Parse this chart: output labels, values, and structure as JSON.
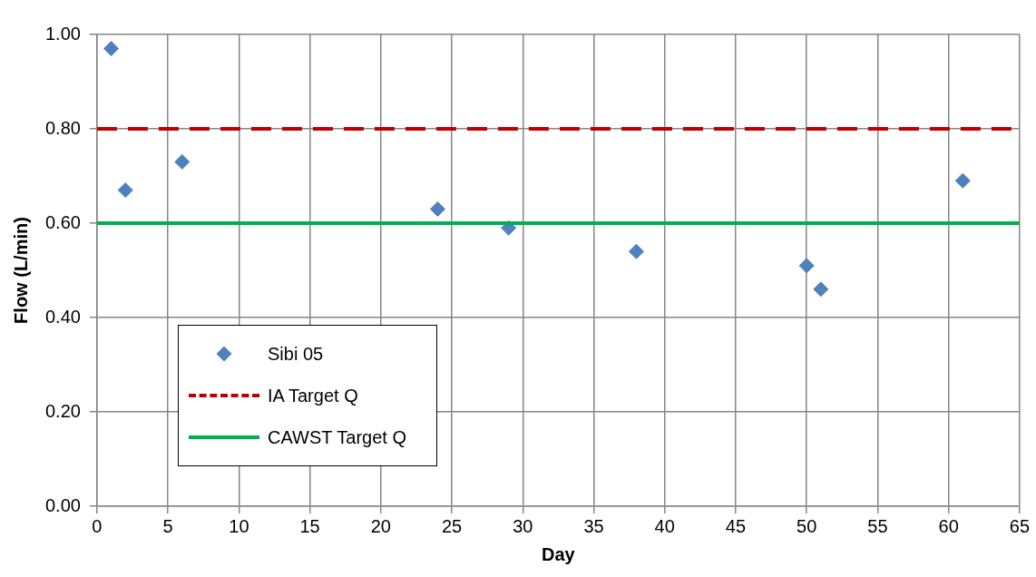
{
  "chart_data": {
    "type": "scatter",
    "xlabel": "Day",
    "ylabel": "Flow (L/min)",
    "series": [
      {
        "name": "Sibi 05",
        "color": "#4f81bd",
        "x": [
          1,
          2,
          6,
          24,
          29,
          38,
          50,
          51,
          61
        ],
        "values": [
          0.97,
          0.67,
          0.73,
          0.63,
          0.59,
          0.54,
          0.51,
          0.46,
          0.69
        ]
      }
    ],
    "ref_lines": [
      {
        "axis": "y",
        "value": 0.8,
        "label": "IA Target Q",
        "color": "#c00000",
        "line_style": "dashed"
      },
      {
        "axis": "y",
        "value": 0.6,
        "label": "CAWST  Target Q",
        "color": "#00b050",
        "line_style": "solid"
      }
    ],
    "xlim": [
      0,
      65
    ],
    "xticks": [
      0,
      5,
      10,
      15,
      20,
      25,
      30,
      35,
      40,
      45,
      50,
      55,
      60,
      65
    ],
    "ylim": [
      0,
      1
    ],
    "yticks": [
      {
        "value": 0,
        "label": "0.00"
      },
      {
        "value": 0.2,
        "label": "0.20"
      },
      {
        "value": 0.4,
        "label": "0.40"
      },
      {
        "value": 0.6,
        "label": "0.60"
      },
      {
        "value": 0.8,
        "label": "0.80"
      },
      {
        "value": 1,
        "label": "1.00"
      }
    ],
    "grid": true,
    "legend": "bottom left",
    "marker": "diamond"
  }
}
